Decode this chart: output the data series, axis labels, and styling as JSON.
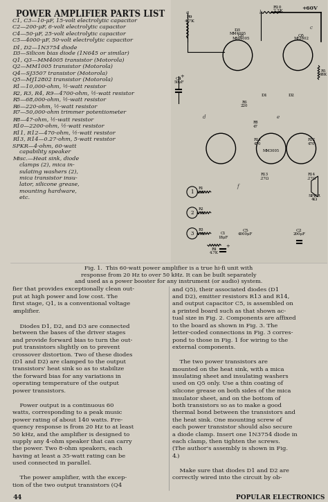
{
  "bg_color": "#d4cfc4",
  "title": "POWER AMPLIFIER PARTS LIST",
  "parts_list": [
    "C1, C3—10-μF, 15-volt electrolytic capacitor",
    "C2—200-μF, 6-volt electrolytic capacitor",
    "C4—50-μF, 25-volt electrolytic capacitor",
    "C5—4000-μF, 50-volt electrolytic capacitor",
    "D1, D2—1N3754 diode",
    "D3—Silicon bias diode (1N645 or similar)",
    "Q1, Q3—MM4005 transistor (Motorola)",
    "Q2—MM1005 transistor (Motorola)",
    "Q4—SJ3507 transistor (Motorola)",
    "Q5—MJ12802 transistor (Motorola)",
    "R1—10,000-ohm, ½-watt resistor",
    "R2, R3, R4, R9—4700-ohm, ½-watt resistor",
    "R5—68,000-ohm, ½-watt resistor",
    "R6—220-ohm, ½-watt resistor",
    "R7—50,000-ohm trimmer potentiometer",
    "R8—47-ohm, ½-watt resistor",
    "R10—2200-ohm, ½-watt resistor",
    "R11, R12—470-ohm, ½-watt resistor",
    "R13, R14—0.27-ohm, 5-watt resistor",
    "SPKR—4-ohm, 60-watt",
    "    capability speaker",
    "Misc.—Heat sink, diode",
    "    clamps (2), mica in-",
    "    sulating washers (2),",
    "    mica transistor insu-",
    "    lator, silicone grease,",
    "    mounting hardware,",
    "    etc."
  ],
  "fig_caption": "Fig. 1.  This 60-watt power amplifier is a true hi-fi unit with\nresponse from 20 Hz to over 50 kHz. It can be built separately\nand used as a power booster for any instrument (or audio) system.",
  "article_left": [
    "fier that provides exceptionally clean out-",
    "put at high power and low cost. The",
    "first stage, Q1, is a conventional voltage",
    "amplifier.",
    "",
    "    Diodes D1, D2, and D3 are connected",
    "between the bases of the driver stages",
    "and provide forward bias to turn the out-",
    "put transistors slightly on to prevent",
    "crossover distortion. Two of these diodes",
    "(D1 and D2) are clamped to the output",
    "transistors' heat sink so as to stabilize",
    "the forward bias for any variations in",
    "operating temperature of the output",
    "power transistors.",
    "",
    "    Power output is a continuous 60",
    "watts, corresponding to a peak music",
    "power rating of about 140 watts. Fre-",
    "quency response is from 20 Hz to at least",
    "50 kHz, and the amplifier is designed to",
    "supply any 4-ohm speaker that can carry",
    "the power. Two 8-ohm speakers, each",
    "having at least a 35-watt rating can be",
    "used connected in parallel.",
    "",
    "    The power amplifier, with the excep-",
    "tion of the two output transistors (Q4"
  ],
  "article_right": [
    "and Q5), their associated diodes (D1",
    "and D2), emitter resistors R13 and R14,",
    "and output capacitor C5, is assembled on",
    "a printed board such as that shown ac-",
    "tual size in Fig. 2. Components are affixed",
    "to the board as shown in Fig. 3. The",
    "letter-coded connections in Fig. 3 corres-",
    "pond to those in Fig. 1 for wiring to the",
    "external components.",
    "",
    "    The two power transistors are",
    "mounted on the heat sink, with a mica",
    "insulating sheet and insulating washers",
    "used on Q5 only. Use a thin coating of",
    "silicone grease on both sides of the mica",
    "insulator sheet, and on the bottom of",
    "both transistors so as to make a good",
    "thermal bond between the transistors and",
    "the heat sink. One mounting screw of",
    "each power transistor should also secure",
    "a diode clamp. Insert one 1N3754 diode in",
    "each clamp, then tighten the screws.",
    "(The author's assembly is shown in Fig.",
    "4.)",
    "",
    "    Make sure that diodes D1 and D2 are",
    "correctly wired into the circuit by ob-"
  ],
  "page_number": "44",
  "magazine": "POPULAR ELECTRONICS"
}
